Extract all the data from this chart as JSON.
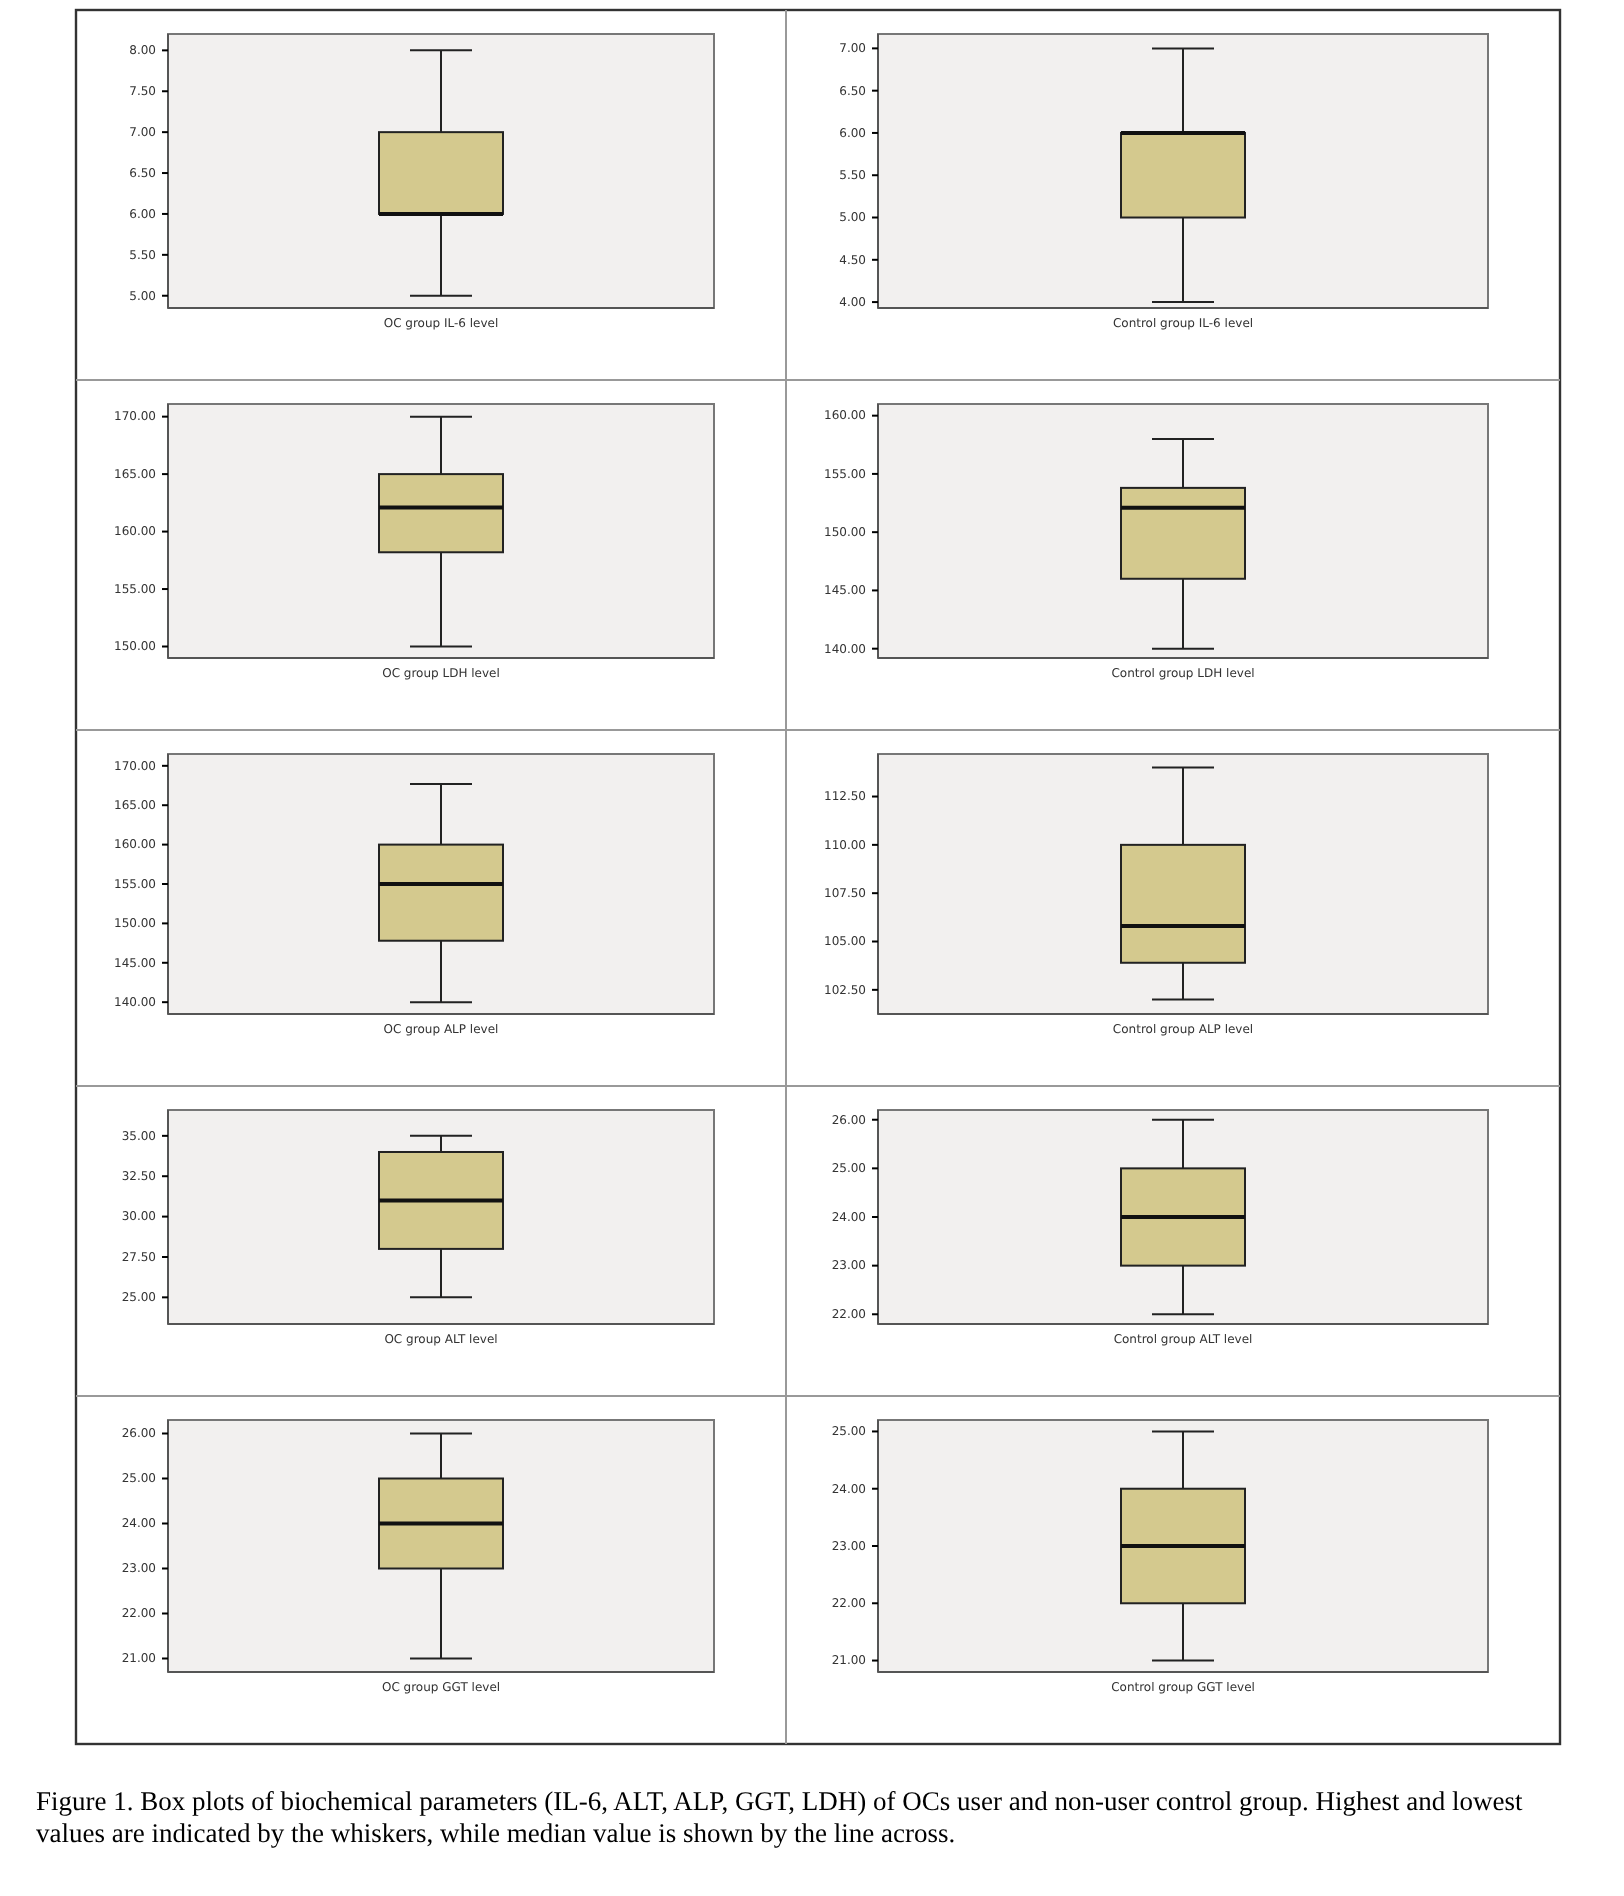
{
  "chart_data": [
    {
      "type": "box",
      "categories": [
        "OC group IL-6 level"
      ],
      "boxes": [
        {
          "low": 5,
          "q1": 6,
          "median": 6,
          "q3": 7,
          "high": 8
        }
      ],
      "color": "#d4c98e",
      "ylim": [
        4.85,
        8.2
      ],
      "yticks": [
        {
          "value": 5,
          "label": "5.00"
        },
        {
          "value": 5.5,
          "label": "5.50"
        },
        {
          "value": 6,
          "label": "6.00"
        },
        {
          "value": 6.5,
          "label": "6.50"
        },
        {
          "value": 7,
          "label": "7.00"
        },
        {
          "value": 7.5,
          "label": "7.50"
        },
        {
          "value": 8,
          "label": "8.00"
        }
      ]
    },
    {
      "type": "box",
      "categories": [
        "Control group IL-6 level"
      ],
      "boxes": [
        {
          "low": 4,
          "q1": 5,
          "median": 6,
          "q3": 6,
          "high": 7
        }
      ],
      "color": "#d4c98e",
      "ylim": [
        3.93,
        7.17
      ],
      "yticks": [
        {
          "value": 4,
          "label": "4.00"
        },
        {
          "value": 4.5,
          "label": "4.50"
        },
        {
          "value": 5,
          "label": "5.00"
        },
        {
          "value": 5.5,
          "label": "5.50"
        },
        {
          "value": 6,
          "label": "6.00"
        },
        {
          "value": 6.5,
          "label": "6.50"
        },
        {
          "value": 7,
          "label": "7.00"
        }
      ]
    },
    {
      "type": "box",
      "categories": [
        "OC group LDH level"
      ],
      "boxes": [
        {
          "low": 150,
          "q1": 158.2,
          "median": 162.1,
          "q3": 165,
          "high": 170
        }
      ],
      "color": "#d4c98e",
      "ylim": [
        149,
        171.1
      ],
      "yticks": [
        {
          "value": 150,
          "label": "150.00"
        },
        {
          "value": 155,
          "label": "155.00"
        },
        {
          "value": 160,
          "label": "160.00"
        },
        {
          "value": 165,
          "label": "165.00"
        },
        {
          "value": 170,
          "label": "170.00"
        }
      ]
    },
    {
      "type": "box",
      "categories": [
        "Control group LDH level"
      ],
      "boxes": [
        {
          "low": 140,
          "q1": 146,
          "median": 152.1,
          "q3": 153.8,
          "high": 158
        }
      ],
      "color": "#d4c98e",
      "ylim": [
        139.2,
        161
      ],
      "yticks": [
        {
          "value": 140,
          "label": "140.00"
        },
        {
          "value": 145,
          "label": "145.00"
        },
        {
          "value": 150,
          "label": "150.00"
        },
        {
          "value": 155,
          "label": "155.00"
        },
        {
          "value": 160,
          "label": "160.00"
        }
      ]
    },
    {
      "type": "box",
      "categories": [
        "OC group ALP level"
      ],
      "boxes": [
        {
          "low": 140,
          "q1": 147.8,
          "median": 155,
          "q3": 160,
          "high": 167.7
        }
      ],
      "color": "#d4c98e",
      "ylim": [
        138.5,
        171.5
      ],
      "yticks": [
        {
          "value": 140,
          "label": "140.00"
        },
        {
          "value": 145,
          "label": "145.00"
        },
        {
          "value": 150,
          "label": "150.00"
        },
        {
          "value": 155,
          "label": "155.00"
        },
        {
          "value": 160,
          "label": "160.00"
        },
        {
          "value": 165,
          "label": "165.00"
        },
        {
          "value": 170,
          "label": "170.00"
        }
      ]
    },
    {
      "type": "box",
      "categories": [
        "Control group ALP level"
      ],
      "boxes": [
        {
          "low": 102,
          "q1": 103.9,
          "median": 105.8,
          "q3": 110,
          "high": 114
        }
      ],
      "color": "#d4c98e",
      "ylim": [
        101.25,
        114.7
      ],
      "yticks": [
        {
          "value": 102.5,
          "label": "102.50"
        },
        {
          "value": 105,
          "label": "105.00"
        },
        {
          "value": 107.5,
          "label": "107.50"
        },
        {
          "value": 110,
          "label": "110.00"
        },
        {
          "value": 112.5,
          "label": "112.50"
        }
      ]
    },
    {
      "type": "box",
      "categories": [
        "OC group ALT level"
      ],
      "boxes": [
        {
          "low": 25,
          "q1": 28,
          "median": 31,
          "q3": 34,
          "high": 35
        }
      ],
      "color": "#d4c98e",
      "ylim": [
        23.35,
        36.6
      ],
      "yticks": [
        {
          "value": 25,
          "label": "25.00"
        },
        {
          "value": 27.5,
          "label": "27.50"
        },
        {
          "value": 30,
          "label": "30.00"
        },
        {
          "value": 32.5,
          "label": "32.50"
        },
        {
          "value": 35,
          "label": "35.00"
        }
      ]
    },
    {
      "type": "box",
      "categories": [
        "Control group ALT level"
      ],
      "boxes": [
        {
          "low": 22,
          "q1": 23,
          "median": 24,
          "q3": 25,
          "high": 26
        }
      ],
      "color": "#d4c98e",
      "ylim": [
        21.8,
        26.2
      ],
      "yticks": [
        {
          "value": 22,
          "label": "22.00"
        },
        {
          "value": 23,
          "label": "23.00"
        },
        {
          "value": 24,
          "label": "24.00"
        },
        {
          "value": 25,
          "label": "25.00"
        },
        {
          "value": 26,
          "label": "26.00"
        }
      ]
    },
    {
      "type": "box",
      "categories": [
        "OC group GGT level"
      ],
      "boxes": [
        {
          "low": 21,
          "q1": 23,
          "median": 24,
          "q3": 25,
          "high": 26
        }
      ],
      "color": "#d4c98e",
      "ylim": [
        20.7,
        26.3
      ],
      "yticks": [
        {
          "value": 21,
          "label": "21.00"
        },
        {
          "value": 22,
          "label": "22.00"
        },
        {
          "value": 23,
          "label": "23.00"
        },
        {
          "value": 24,
          "label": "24.00"
        },
        {
          "value": 25,
          "label": "25.00"
        },
        {
          "value": 26,
          "label": "26.00"
        }
      ]
    },
    {
      "type": "box",
      "categories": [
        "Control group GGT level"
      ],
      "boxes": [
        {
          "low": 21,
          "q1": 22,
          "median": 23,
          "q3": 24,
          "high": 25
        }
      ],
      "color": "#d4c98e",
      "ylim": [
        20.8,
        25.2
      ],
      "yticks": [
        {
          "value": 21,
          "label": "21.00"
        },
        {
          "value": 22,
          "label": "22.00"
        },
        {
          "value": 23,
          "label": "23.00"
        },
        {
          "value": 24,
          "label": "24.00"
        },
        {
          "value": 25,
          "label": "25.00"
        }
      ],
      "annotations": [
        "Figure 1. Box plots of biochemical parameters (IL-6, ALT, ALP, GGT, LDH) of OCs user and non-user control group. Highest and lowest values are indicated by the whiskers, while median value is shown by the line across."
      ]
    }
  ]
}
